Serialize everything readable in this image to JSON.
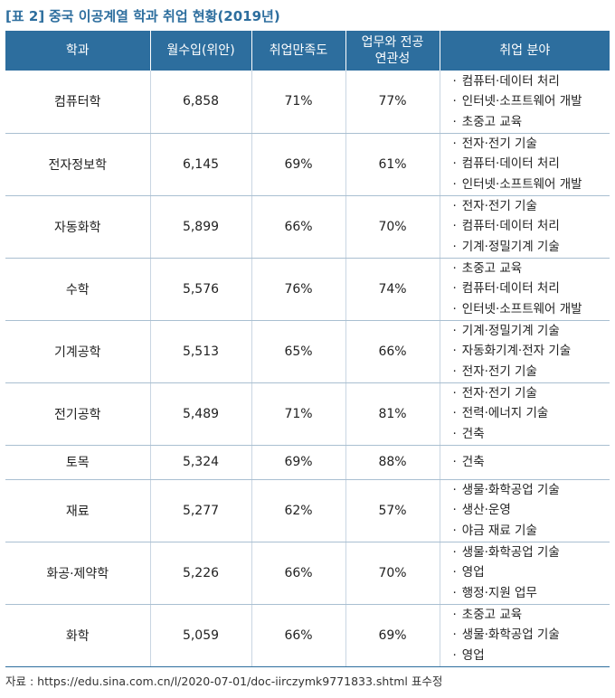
{
  "caption": {
    "tag": "[표 2]",
    "title": "중국 이공계열 학과 취업 현황(2019년)"
  },
  "table": {
    "headers": [
      "학과",
      "월수입(위안)",
      "취업만족도",
      "업무와 전공 연관성",
      "취업 분야"
    ],
    "rows": [
      {
        "major": "컴퓨터학",
        "income": "6,858",
        "satisfaction": "71%",
        "relevance": "77%",
        "fields": [
          "컴퓨터·데이터 처리",
          "인터넷·소프트웨어 개발",
          "초중고 교육"
        ]
      },
      {
        "major": "전자정보학",
        "income": "6,145",
        "satisfaction": "69%",
        "relevance": "61%",
        "fields": [
          "전자·전기 기술",
          "컴퓨터·데이터 처리",
          "인터넷·소프트웨어 개발"
        ]
      },
      {
        "major": "자동화학",
        "income": "5,899",
        "satisfaction": "66%",
        "relevance": "70%",
        "fields": [
          "전자·전기 기술",
          "컴퓨터·데이터 처리",
          "기계·정밀기계 기술"
        ]
      },
      {
        "major": "수학",
        "income": "5,576",
        "satisfaction": "76%",
        "relevance": "74%",
        "fields": [
          "초중고 교육",
          "컴퓨터·데이터 처리",
          "인터넷·소프트웨어 개발"
        ]
      },
      {
        "major": "기계공학",
        "income": "5,513",
        "satisfaction": "65%",
        "relevance": "66%",
        "fields": [
          "기계·정밀기계 기술",
          "자동화기계·전자 기술",
          "전자·전기 기술"
        ]
      },
      {
        "major": "전기공학",
        "income": "5,489",
        "satisfaction": "71%",
        "relevance": "81%",
        "fields": [
          "전자·전기 기술",
          "전력·에너지 기술",
          "건축"
        ]
      },
      {
        "major": "토목",
        "income": "5,324",
        "satisfaction": "69%",
        "relevance": "88%",
        "fields": [
          "건축"
        ]
      },
      {
        "major": "재료",
        "income": "5,277",
        "satisfaction": "62%",
        "relevance": "57%",
        "fields": [
          "생물·화학공업 기술",
          "생산·운영",
          "야금 재료 기술"
        ]
      },
      {
        "major": "화공·제약학",
        "income": "5,226",
        "satisfaction": "66%",
        "relevance": "70%",
        "fields": [
          "생물·화학공업 기술",
          "영업",
          "행정·지원 업무"
        ]
      },
      {
        "major": "화학",
        "income": "5,059",
        "satisfaction": "66%",
        "relevance": "69%",
        "fields": [
          "초중고 교육",
          "생물·화학공업 기술",
          "영업"
        ]
      }
    ]
  },
  "source": "자료 : https://edu.sina.com.cn/l/2020-07-01/doc-iirczymk9771833.shtml 표수정",
  "colors": {
    "header_bg": "#2d6e9e",
    "caption_accent": "#2d6e9e"
  }
}
